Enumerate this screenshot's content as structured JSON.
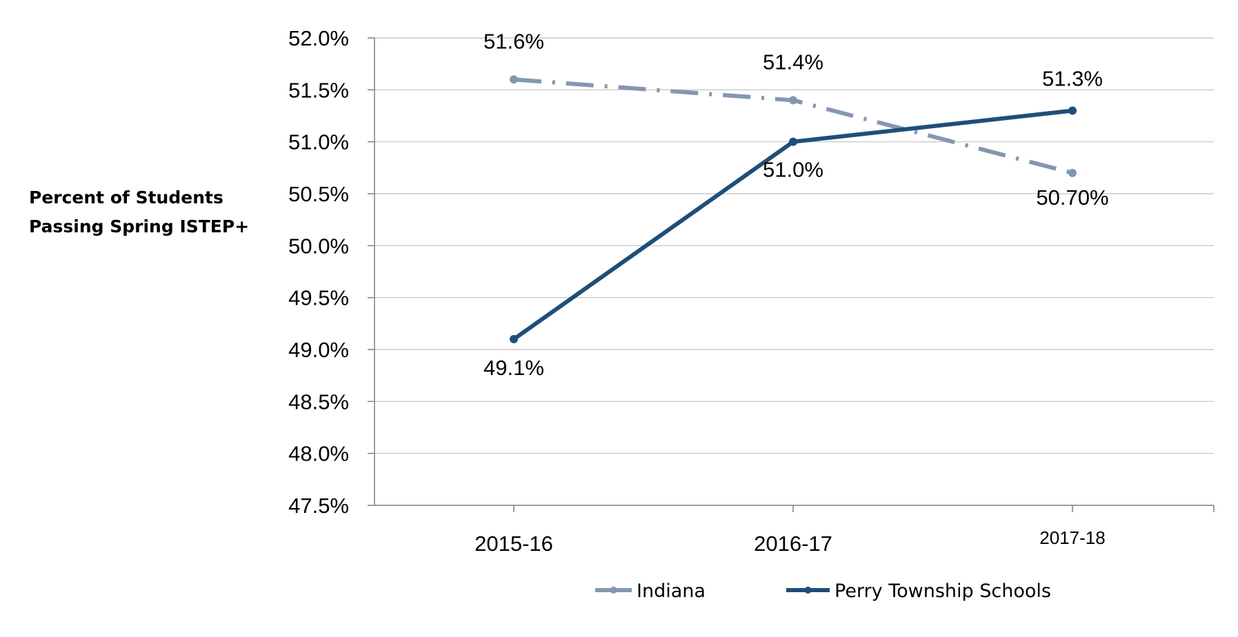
{
  "chart_data": {
    "type": "line",
    "ylabel_lines": [
      "Percent of Students",
      "Passing Spring ISTEP+"
    ],
    "categories": [
      "2015-16",
      "2016-17",
      "2017-18"
    ],
    "ylim": [
      47.5,
      52.0
    ],
    "yticks": [
      47.5,
      48.0,
      48.5,
      49.0,
      49.5,
      50.0,
      50.5,
      51.0,
      51.5,
      52.0
    ],
    "ytick_labels": [
      "47.5%",
      "48.0%",
      "48.5%",
      "49.0%",
      "49.5%",
      "50.0%",
      "50.5%",
      "51.0%",
      "51.5%",
      "52.0%"
    ],
    "grid": true,
    "legend_position": "bottom",
    "series": [
      {
        "name": "Indiana",
        "values": [
          51.6,
          51.4,
          50.7
        ],
        "labels": [
          "51.6%",
          "51.4%",
          "50.70%"
        ],
        "color": "#8497b0",
        "line_style": "dash-dot"
      },
      {
        "name": "Perry Township Schools",
        "values": [
          49.1,
          51.0,
          51.3
        ],
        "labels": [
          "49.1%",
          "51.0%",
          "51.3%"
        ],
        "color": "#1f4e79",
        "line_style": "solid"
      }
    ]
  }
}
